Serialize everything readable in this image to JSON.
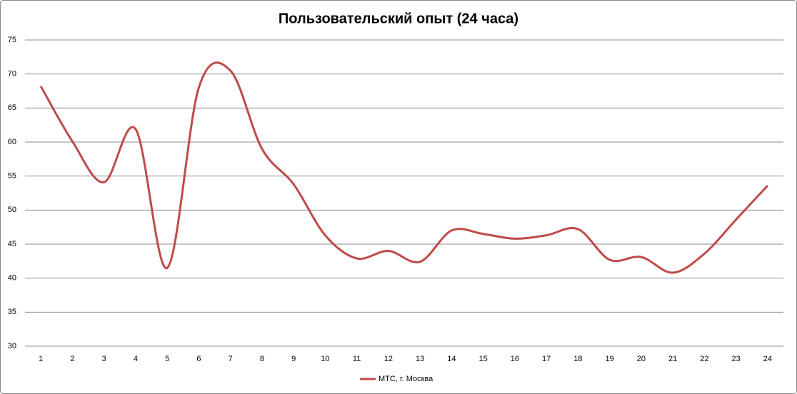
{
  "chart_data": {
    "type": "line",
    "title": "Пользовательский опыт (24 часа)",
    "categories": [
      "1",
      "2",
      "3",
      "4",
      "5",
      "6",
      "7",
      "8",
      "9",
      "10",
      "11",
      "12",
      "13",
      "14",
      "15",
      "16",
      "17",
      "18",
      "19",
      "20",
      "21",
      "22",
      "23",
      "24"
    ],
    "series": [
      {
        "name": "МТС, г. Москва",
        "color": "#be4b48",
        "values": [
          68.2,
          60.1,
          54.1,
          61.9,
          41.5,
          68,
          70.5,
          59,
          53.8,
          46.3,
          42.9,
          44,
          42.4,
          47,
          46.5,
          45.8,
          46.3,
          47.2,
          42.7,
          43.1,
          40.8,
          43.6,
          48.6,
          53.6
        ]
      }
    ],
    "ylim": [
      30,
      75
    ],
    "yticks": [
      30,
      35,
      40,
      45,
      50,
      55,
      60,
      65,
      70,
      75
    ],
    "grid": true,
    "smooth": true,
    "legend": "bottom"
  }
}
